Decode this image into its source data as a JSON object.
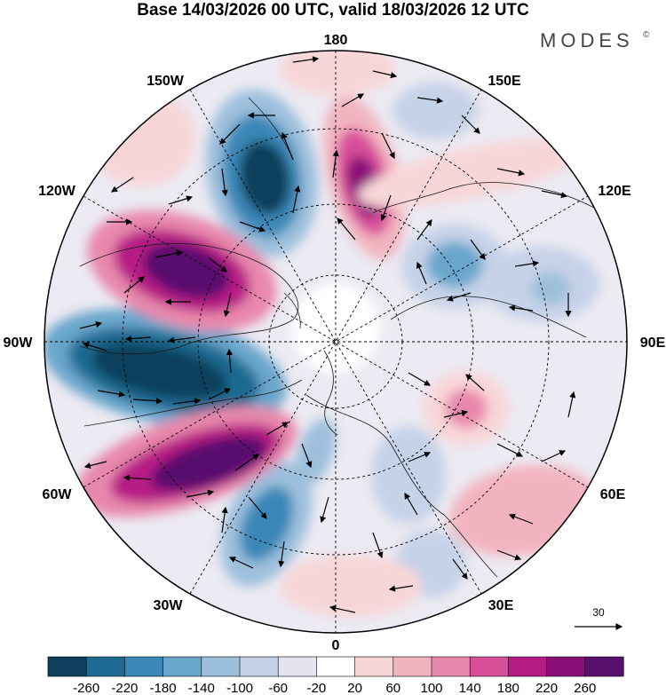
{
  "header": {
    "title": "Base 14/03/2026 00 UTC, valid 18/03/2026 12 UTC",
    "brand": "MODES",
    "brand_mark": "©"
  },
  "map": {
    "projection": "north polar stereographic",
    "longitude_labels": {
      "top": "180",
      "top_right": "150E",
      "right_upper": "120E",
      "right": "90E",
      "right_lower": "60E",
      "bottom_right": "30E",
      "bottom": "0",
      "bottom_left": "30W",
      "left_lower": "60W",
      "left": "90W",
      "left_upper": "120W",
      "top_left": "150W"
    },
    "reference_vector": {
      "label": "30"
    }
  },
  "colorbar": {
    "ticks": [
      "-260",
      "-220",
      "-180",
      "-140",
      "-100",
      "-60",
      "-20",
      "20",
      "60",
      "100",
      "140",
      "180",
      "220",
      "260"
    ],
    "colors": [
      "#0f3f5c",
      "#1f6a92",
      "#3b88b8",
      "#6aa6cc",
      "#9cbfdc",
      "#c6d2e8",
      "#e4e4f0",
      "#ffffff",
      "#f8d6d8",
      "#f2b3c0",
      "#e888ac",
      "#d8509a",
      "#b71c85",
      "#8a1078",
      "#58106e"
    ]
  },
  "colors": {
    "coast": "#1a1a1a",
    "grid": "#000000",
    "arrows": "#000000"
  }
}
